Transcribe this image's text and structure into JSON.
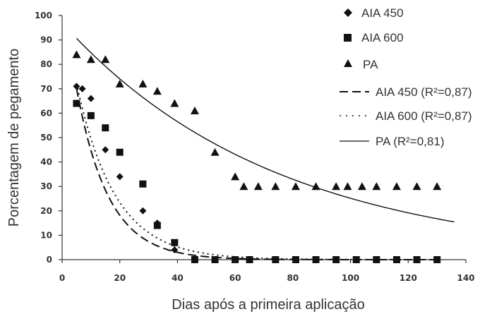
{
  "chart_data": {
    "type": "scatter",
    "xlabel": "Dias após a primeira aplicação",
    "ylabel": "Porcentagem de pegamento",
    "xlim": [
      0,
      140
    ],
    "ylim": [
      0,
      100
    ],
    "xticks": [
      0,
      20,
      40,
      60,
      80,
      100,
      120,
      140
    ],
    "yticks": [
      0,
      10,
      20,
      30,
      40,
      50,
      60,
      70,
      80,
      90,
      100
    ],
    "grid": false,
    "legend_position": "top-right",
    "series": [
      {
        "name": "AIA 450",
        "marker": "diamond",
        "color": "#111111",
        "points": [
          [
            5,
            71
          ],
          [
            7,
            70
          ],
          [
            10,
            66
          ],
          [
            15,
            45
          ],
          [
            20,
            34
          ],
          [
            28,
            20
          ],
          [
            33,
            15
          ],
          [
            39,
            4
          ],
          [
            46,
            0
          ],
          [
            53,
            0
          ],
          [
            60,
            0
          ],
          [
            65,
            0
          ],
          [
            74,
            0
          ],
          [
            81,
            0
          ],
          [
            88,
            0
          ],
          [
            95,
            0
          ],
          [
            102,
            0
          ],
          [
            109,
            0
          ],
          [
            116,
            0
          ],
          [
            123,
            0
          ],
          [
            130,
            0
          ]
        ]
      },
      {
        "name": "AIA 600",
        "marker": "square",
        "color": "#111111",
        "points": [
          [
            5,
            64
          ],
          [
            10,
            59
          ],
          [
            15,
            54
          ],
          [
            20,
            44
          ],
          [
            28,
            31
          ],
          [
            33,
            14
          ],
          [
            39,
            7
          ],
          [
            46,
            0
          ],
          [
            53,
            0
          ],
          [
            60,
            0
          ],
          [
            65,
            0
          ],
          [
            74,
            0
          ],
          [
            81,
            0
          ],
          [
            88,
            0
          ],
          [
            95,
            0
          ],
          [
            102,
            0
          ],
          [
            109,
            0
          ],
          [
            116,
            0
          ],
          [
            123,
            0
          ],
          [
            130,
            0
          ]
        ]
      },
      {
        "name": "PA",
        "marker": "triangle",
        "color": "#111111",
        "points": [
          [
            5,
            84
          ],
          [
            10,
            82
          ],
          [
            15,
            82
          ],
          [
            20,
            72
          ],
          [
            28,
            72
          ],
          [
            33,
            69
          ],
          [
            39,
            64
          ],
          [
            46,
            61
          ],
          [
            53,
            44
          ],
          [
            60,
            34
          ],
          [
            63,
            30
          ],
          [
            68,
            30
          ],
          [
            74,
            30
          ],
          [
            81,
            30
          ],
          [
            88,
            30
          ],
          [
            95,
            30
          ],
          [
            99,
            30
          ],
          [
            104,
            30
          ],
          [
            109,
            30
          ],
          [
            116,
            30
          ],
          [
            123,
            30
          ],
          [
            130,
            30
          ]
        ]
      }
    ],
    "trendlines": [
      {
        "name": "AIA 450 (R²=0,87)",
        "style": "dashed",
        "a": 110,
        "k": 0.09,
        "x_start": 5,
        "x_end": 130
      },
      {
        "name": "AIA 600 (R²=0,87)",
        "style": "dotted",
        "a": 105,
        "k": 0.075,
        "x_start": 5,
        "x_end": 130
      },
      {
        "name": "PA (R²=0,81)",
        "style": "solid",
        "a": 97,
        "k": 0.0135,
        "x_start": 5,
        "x_end": 136
      }
    ]
  }
}
